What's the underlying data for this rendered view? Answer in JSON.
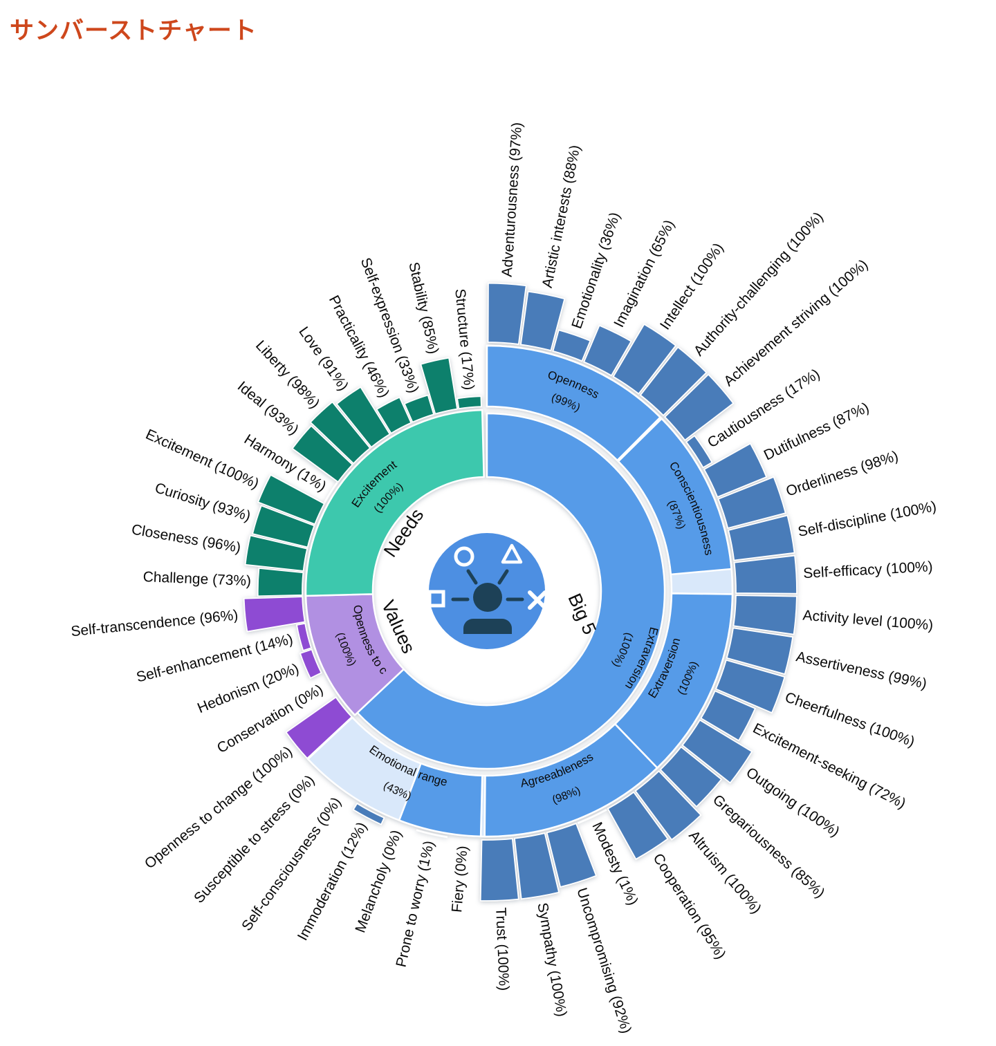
{
  "page": {
    "title": "サンバーストチャート",
    "title_color": "#CE471C",
    "background": "#ffffff"
  },
  "chart_data": {
    "type": "sunburst",
    "center_icon": "personality-insights-icon",
    "colors": {
      "big5_base": "#579BE8",
      "big5_unfilled": "#D9E8FA",
      "big5_bar": "#4A7CB9",
      "needs_base": "#3EC8AD",
      "needs_bar": "#10806C",
      "values_base": "#B190E2",
      "values_bar": "#8E4BD3",
      "icon_bg": "#4D8FE2",
      "icon_fg": "#1D4157",
      "label": "#0A0A0A"
    },
    "sectors": [
      {
        "id": "big5",
        "label": "Big 5",
        "summary": {
          "name": "Extraversion",
          "pct": 100
        },
        "traits": [
          {
            "name": "Openness",
            "pct": 99,
            "facets": [
              {
                "name": "Adventurousness",
                "pct": 97
              },
              {
                "name": "Artistic interests",
                "pct": 88
              },
              {
                "name": "Emotionality",
                "pct": 36
              },
              {
                "name": "Imagination",
                "pct": 65
              },
              {
                "name": "Intellect",
                "pct": 100
              },
              {
                "name": "Authority-challenging",
                "pct": 100
              }
            ]
          },
          {
            "name": "Conscientiousness",
            "pct": 87,
            "facets": [
              {
                "name": "Achievement striving",
                "pct": 100
              },
              {
                "name": "Cautiousness",
                "pct": 17
              },
              {
                "name": "Dutifulness",
                "pct": 87
              },
              {
                "name": "Orderliness",
                "pct": 98
              },
              {
                "name": "Self-discipline",
                "pct": 100
              },
              {
                "name": "Self-efficacy",
                "pct": 100
              }
            ]
          },
          {
            "name": "Extraversion",
            "pct": 100,
            "facets": [
              {
                "name": "Activity level",
                "pct": 100
              },
              {
                "name": "Assertiveness",
                "pct": 99
              },
              {
                "name": "Cheerfulness",
                "pct": 100
              },
              {
                "name": "Excitement-seeking",
                "pct": 72
              },
              {
                "name": "Outgoing",
                "pct": 100
              },
              {
                "name": "Gregariousness",
                "pct": 85
              }
            ]
          },
          {
            "name": "Agreeableness",
            "pct": 98,
            "facets": [
              {
                "name": "Altruism",
                "pct": 100
              },
              {
                "name": "Cooperation",
                "pct": 95
              },
              {
                "name": "Modesty",
                "pct": 1
              },
              {
                "name": "Uncompromising",
                "pct": 92
              },
              {
                "name": "Sympathy",
                "pct": 100
              },
              {
                "name": "Trust",
                "pct": 100
              }
            ]
          },
          {
            "name": "Emotional range",
            "pct": 43,
            "facets": [
              {
                "name": "Fiery",
                "pct": 0
              },
              {
                "name": "Prone to worry",
                "pct": 1
              },
              {
                "name": "Melancholy",
                "pct": 0
              },
              {
                "name": "Immoderation",
                "pct": 12
              },
              {
                "name": "Self-consciousness",
                "pct": 0
              },
              {
                "name": "Susceptible to stress",
                "pct": 0
              }
            ]
          }
        ]
      },
      {
        "id": "values",
        "label": "Values",
        "summary": {
          "name": "Openness to c",
          "pct": 100
        },
        "items": [
          {
            "name": "Openness to change",
            "pct": 100
          },
          {
            "name": "Conservation",
            "pct": 0
          },
          {
            "name": "Hedonism",
            "pct": 20
          },
          {
            "name": "Self-enhancement",
            "pct": 14
          },
          {
            "name": "Self-transcendence",
            "pct": 96
          }
        ]
      },
      {
        "id": "needs",
        "label": "Needs",
        "summary": {
          "name": "Excitement",
          "pct": 100
        },
        "items": [
          {
            "name": "Challenge",
            "pct": 73
          },
          {
            "name": "Closeness",
            "pct": 96
          },
          {
            "name": "Curiosity",
            "pct": 93
          },
          {
            "name": "Excitement",
            "pct": 100
          },
          {
            "name": "Harmony",
            "pct": 1
          },
          {
            "name": "Ideal",
            "pct": 93
          },
          {
            "name": "Liberty",
            "pct": 98
          },
          {
            "name": "Love",
            "pct": 91
          },
          {
            "name": "Practicality",
            "pct": 46
          },
          {
            "name": "Self-expression",
            "pct": 33
          },
          {
            "name": "Stability",
            "pct": 85
          },
          {
            "name": "Structure",
            "pct": 17
          }
        ]
      }
    ]
  }
}
